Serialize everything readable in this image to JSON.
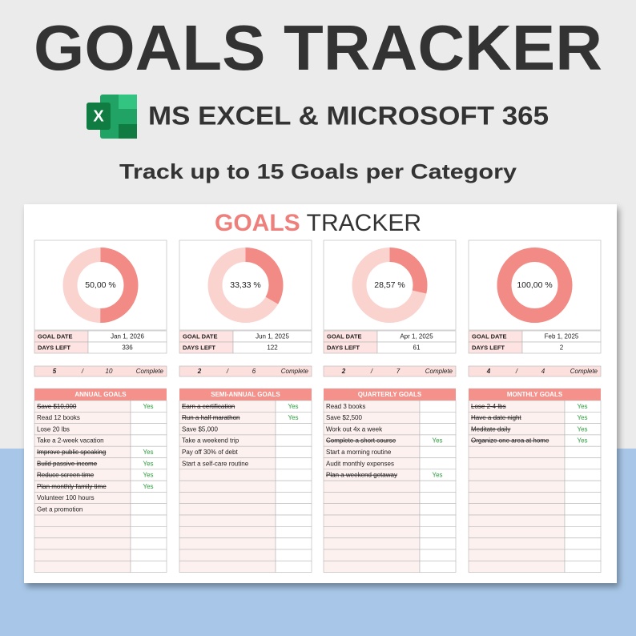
{
  "header": {
    "title": "GOALS TRACKER",
    "subtitle": "MS EXCEL & MICROSOFT 365",
    "tagline": "Track up to 15 Goals per Category"
  },
  "sheet": {
    "title_accent": "GOALS",
    "title_rest": "TRACKER"
  },
  "panels": [
    {
      "value": 50,
      "value_label": "50,00 %",
      "goal_date_label": "GOAL DATE",
      "goal_date": "Jan 1, 2026",
      "days_left_label": "DAYS LEFT",
      "days_left": 336,
      "done": 5,
      "separator": "/",
      "total": 10,
      "complete_label": "Complete",
      "heading": "ANNUAL GOALS",
      "goals": [
        {
          "text": "Save $10,000",
          "struck": true,
          "status": "Yes"
        },
        {
          "text": "Read 12 books",
          "struck": false
        },
        {
          "text": "Lose 20 lbs",
          "struck": false
        },
        {
          "text": "Take a 2-week vacation",
          "struck": false
        },
        {
          "text": "Improve public speaking",
          "struck": true,
          "status": "Yes"
        },
        {
          "text": "Build passive income",
          "struck": true,
          "status": "Yes"
        },
        {
          "text": "Reduce screen time",
          "struck": true,
          "status": "Yes"
        },
        {
          "text": "Plan monthly family time",
          "struck": true,
          "status": "Yes"
        },
        {
          "text": "Volunteer 100 hours",
          "struck": false
        },
        {
          "text": "Get a promotion",
          "struck": false
        }
      ]
    },
    {
      "value": 33.33,
      "value_label": "33,33 %",
      "goal_date_label": "GOAL DATE",
      "goal_date": "Jun 1, 2025",
      "days_left_label": "DAYS LEFT",
      "days_left": 122,
      "done": 2,
      "separator": "/",
      "total": 6,
      "complete_label": "Complete",
      "heading": "SEMI-ANNUAL GOALS",
      "goals": [
        {
          "text": "Earn a certification",
          "struck": true,
          "status": "Yes"
        },
        {
          "text": "Run a half marathon",
          "struck": true,
          "status": "Yes"
        },
        {
          "text": "Save $5,000",
          "struck": false
        },
        {
          "text": "Take a weekend trip",
          "struck": false
        },
        {
          "text": "Pay off 30% of debt",
          "struck": false
        },
        {
          "text": "Start a self-care routine",
          "struck": false
        }
      ]
    },
    {
      "value": 28.57,
      "value_label": "28,57 %",
      "goal_date_label": "GOAL DATE",
      "goal_date": "Apr 1, 2025",
      "days_left_label": "DAYS LEFT",
      "days_left": 61,
      "done": 2,
      "separator": "/",
      "total": 7,
      "complete_label": "Complete",
      "heading": "QUARTERLY GOALS",
      "goals": [
        {
          "text": "Read 3 books",
          "struck": false
        },
        {
          "text": "Save $2,500",
          "struck": false
        },
        {
          "text": "Work out 4x a week",
          "struck": false
        },
        {
          "text": "Complete a short course",
          "struck": true,
          "status": "Yes"
        },
        {
          "text": "Start a morning routine",
          "struck": false
        },
        {
          "text": "Audit monthly expenses",
          "struck": false
        },
        {
          "text": "Plan a weekend getaway",
          "struck": true,
          "status": "Yes"
        }
      ]
    },
    {
      "value": 100,
      "value_label": "100,00 %",
      "goal_date_label": "GOAL DATE",
      "goal_date": "Feb 1, 2025",
      "days_left_label": "DAYS LEFT",
      "days_left": 2,
      "done": 4,
      "separator": "/",
      "total": 4,
      "complete_label": "Complete",
      "heading": "MONTHLY GOALS",
      "goals": [
        {
          "text": "Lose 2-4 lbs",
          "struck": true,
          "status": "Yes"
        },
        {
          "text": "Have a date night",
          "struck": true,
          "status": "Yes"
        },
        {
          "text": "Meditate daily",
          "struck": true,
          "status": "Yes"
        },
        {
          "text": "Organize one area at home",
          "struck": true,
          "status": "Yes"
        }
      ]
    }
  ]
}
